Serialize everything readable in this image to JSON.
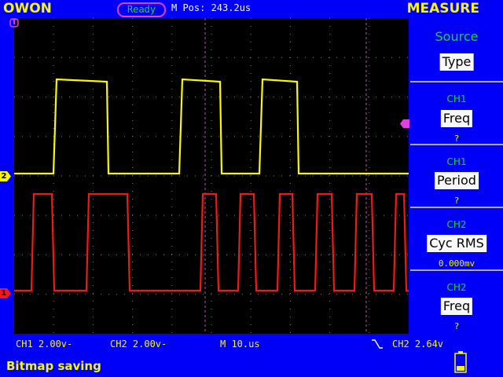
{
  "header": {
    "brand": "OWON",
    "status": "Ready",
    "mpos": "M Pos: 243.2us",
    "mode": "MEASURE"
  },
  "markers": {
    "trigger": "T",
    "ch2": "2",
    "ch1": "1"
  },
  "measure": {
    "source_label": "Source",
    "type_label": "Type",
    "items": [
      {
        "channel": "CH1",
        "type": "Freq",
        "value": "?"
      },
      {
        "channel": "CH1",
        "type": "Period",
        "value": "?"
      },
      {
        "channel": "CH2",
        "type": "Cyc RMS",
        "value": "0.000mv"
      },
      {
        "channel": "CH2",
        "type": "Freq",
        "value": "?"
      }
    ]
  },
  "footer": {
    "ch1_scale": "CH1 2.00v-",
    "ch2_scale": "CH2 2.00v-",
    "timebase": "M 10.us",
    "trigger": "CH2 2.64v",
    "message": "Bitmap saving"
  },
  "colors": {
    "background": "#0000f8",
    "ch1": "#f8f800",
    "ch2": "#f01818",
    "accent": "#10e010",
    "marker": "#e040e0"
  },
  "icons": {
    "trigger_edge": "falling-edge-icon",
    "battery": "battery-icon"
  }
}
